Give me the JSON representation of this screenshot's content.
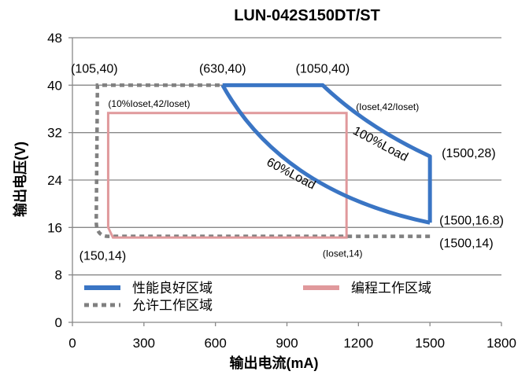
{
  "chart_data": {
    "type": "line",
    "title": "LUN-042S150DT/ST",
    "xlabel": "输出电流(mA)",
    "ylabel": "输出电压(V)",
    "xlim": [
      0,
      1800
    ],
    "ylim": [
      0,
      48
    ],
    "xticks": [
      0,
      300,
      600,
      900,
      1200,
      1500,
      1800
    ],
    "yticks": [
      0,
      8,
      16,
      24,
      32,
      40,
      48
    ],
    "grid": "horizontal",
    "legend_position": "bottom-left",
    "series": [
      {
        "name": "性能良好区域",
        "color": "#3a75c4",
        "style": "solid",
        "points": [
          [
            630,
            40
          ],
          [
            1050,
            40
          ],
          [
            1500,
            28
          ],
          [
            1500,
            16.8
          ],
          [
            630,
            40
          ]
        ]
      },
      {
        "name": "编程工作区域",
        "color": "#e0999c",
        "style": "solid",
        "points": [
          [
            150,
            35.3
          ],
          [
            1150,
            35.3
          ],
          [
            1150,
            14.3
          ],
          [
            170,
            14.3
          ],
          [
            150,
            16
          ]
        ]
      },
      {
        "name": "允许工作区域",
        "color": "#808080",
        "style": "dashed",
        "points": [
          [
            1500,
            14.5
          ],
          [
            150,
            14.5
          ],
          [
            100,
            17
          ],
          [
            105,
            40
          ],
          [
            630,
            40
          ]
        ]
      }
    ],
    "annotations": [
      {
        "text": "(105,40)",
        "x": 105,
        "y": 40
      },
      {
        "text": "(630,40)",
        "x": 630,
        "y": 40
      },
      {
        "text": "(1050,40)",
        "x": 1050,
        "y": 40
      },
      {
        "text": "(10%Ioset,42/Ioset)",
        "x": 150,
        "y": 35.3
      },
      {
        "text": "(Ioset,42/Ioset)",
        "x": 1150,
        "y": 35.3
      },
      {
        "text": "100%Load",
        "x": 1285,
        "y": 29.5
      },
      {
        "text": "(1500,28)",
        "x": 1500,
        "y": 28
      },
      {
        "text": "60%Load",
        "x": 910,
        "y": 24.5
      },
      {
        "text": "(1500,16.8)",
        "x": 1500,
        "y": 16.8
      },
      {
        "text": "(1500,14)",
        "x": 1500,
        "y": 14
      },
      {
        "text": "(150,14)",
        "x": 150,
        "y": 14
      },
      {
        "text": "(Ioset,14)",
        "x": 1150,
        "y": 14
      }
    ]
  }
}
